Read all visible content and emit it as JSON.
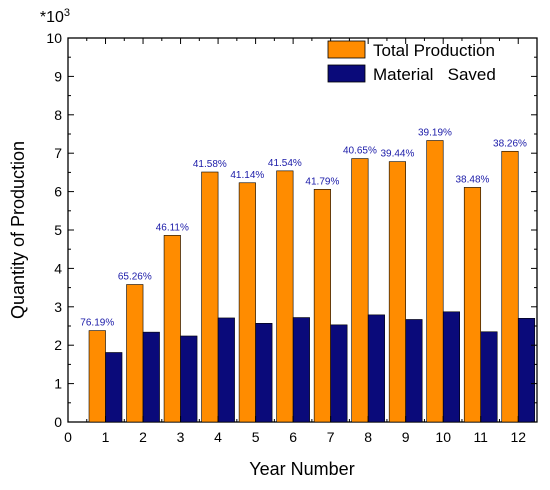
{
  "chart_data": {
    "type": "bar",
    "xlabel": "Year Number",
    "ylabel": "Quantity of Production",
    "y_multiplier_base": "*10",
    "y_multiplier_exp": "3",
    "xlim": [
      0,
      12.5
    ],
    "ylim": [
      0,
      10
    ],
    "x_ticks": [
      0,
      1,
      2,
      3,
      4,
      5,
      6,
      7,
      8,
      9,
      10,
      11,
      12
    ],
    "y_ticks": [
      0,
      1,
      2,
      3,
      4,
      5,
      6,
      7,
      8,
      9,
      10
    ],
    "categories": [
      1,
      2,
      3,
      4,
      5,
      6,
      7,
      8,
      9,
      10,
      11,
      12
    ],
    "series": [
      {
        "name": "Total Production",
        "color": "#ff8c00",
        "values": [
          2.38,
          3.58,
          4.86,
          6.51,
          6.23,
          6.54,
          6.06,
          6.86,
          6.78,
          7.33,
          6.11,
          7.05
        ]
      },
      {
        "name": "Material   Saved",
        "color": "#0a0a7a",
        "values": [
          1.81,
          2.34,
          2.24,
          2.71,
          2.57,
          2.72,
          2.53,
          2.79,
          2.67,
          2.87,
          2.35,
          2.7
        ]
      }
    ],
    "data_labels": [
      "76.19%",
      "65.26%",
      "46.11%",
      "41.58%",
      "41.14%",
      "41.54%",
      "41.79%",
      "40.65%",
      "39.44%",
      "39.19%",
      "38.48%",
      "38.26%"
    ],
    "legend_position": "top-right",
    "grid": false
  }
}
